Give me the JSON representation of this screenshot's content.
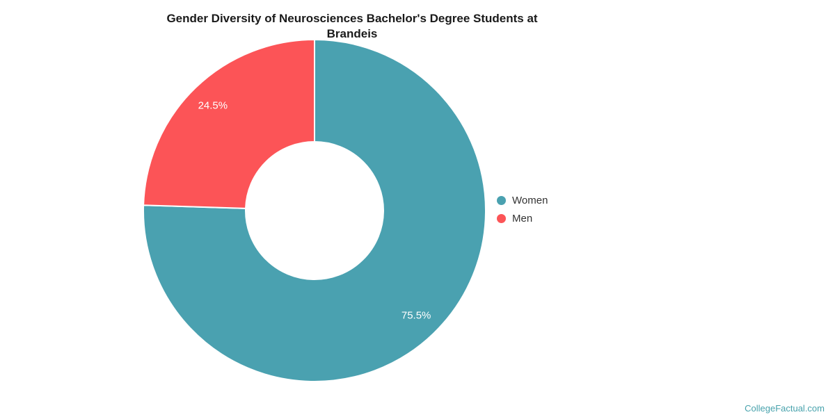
{
  "title": "Gender Diversity of Neurosciences Bachelor's Degree Students at Brandeis",
  "watermark": "CollegeFactual.com",
  "colors": {
    "women": "#4aa1b0",
    "men": "#fc5457",
    "slice_border": "#ffffff",
    "title_text": "#1a1a1a",
    "legend_text": "#333333",
    "slice_label_text": "#ffffff",
    "watermark_text": "#47a2ac",
    "background": "#ffffff"
  },
  "legend": {
    "position": "right",
    "items": [
      {
        "label": "Women",
        "color": "#4aa1b0"
      },
      {
        "label": "Men",
        "color": "#fc5457"
      }
    ]
  },
  "chart_data": {
    "type": "pie",
    "subtype": "donut",
    "title": "Gender Diversity of Neurosciences Bachelor's Degree Students at Brandeis",
    "categories": [
      "Women",
      "Men"
    ],
    "values": [
      75.5,
      24.5
    ],
    "data_labels": [
      "75.5%",
      "24.5%"
    ],
    "colors": [
      "#4aa1b0",
      "#fc5457"
    ],
    "units": "percent",
    "start_angle_deg": 0,
    "direction": "clockwise",
    "legend_position": "right",
    "grid": false
  }
}
